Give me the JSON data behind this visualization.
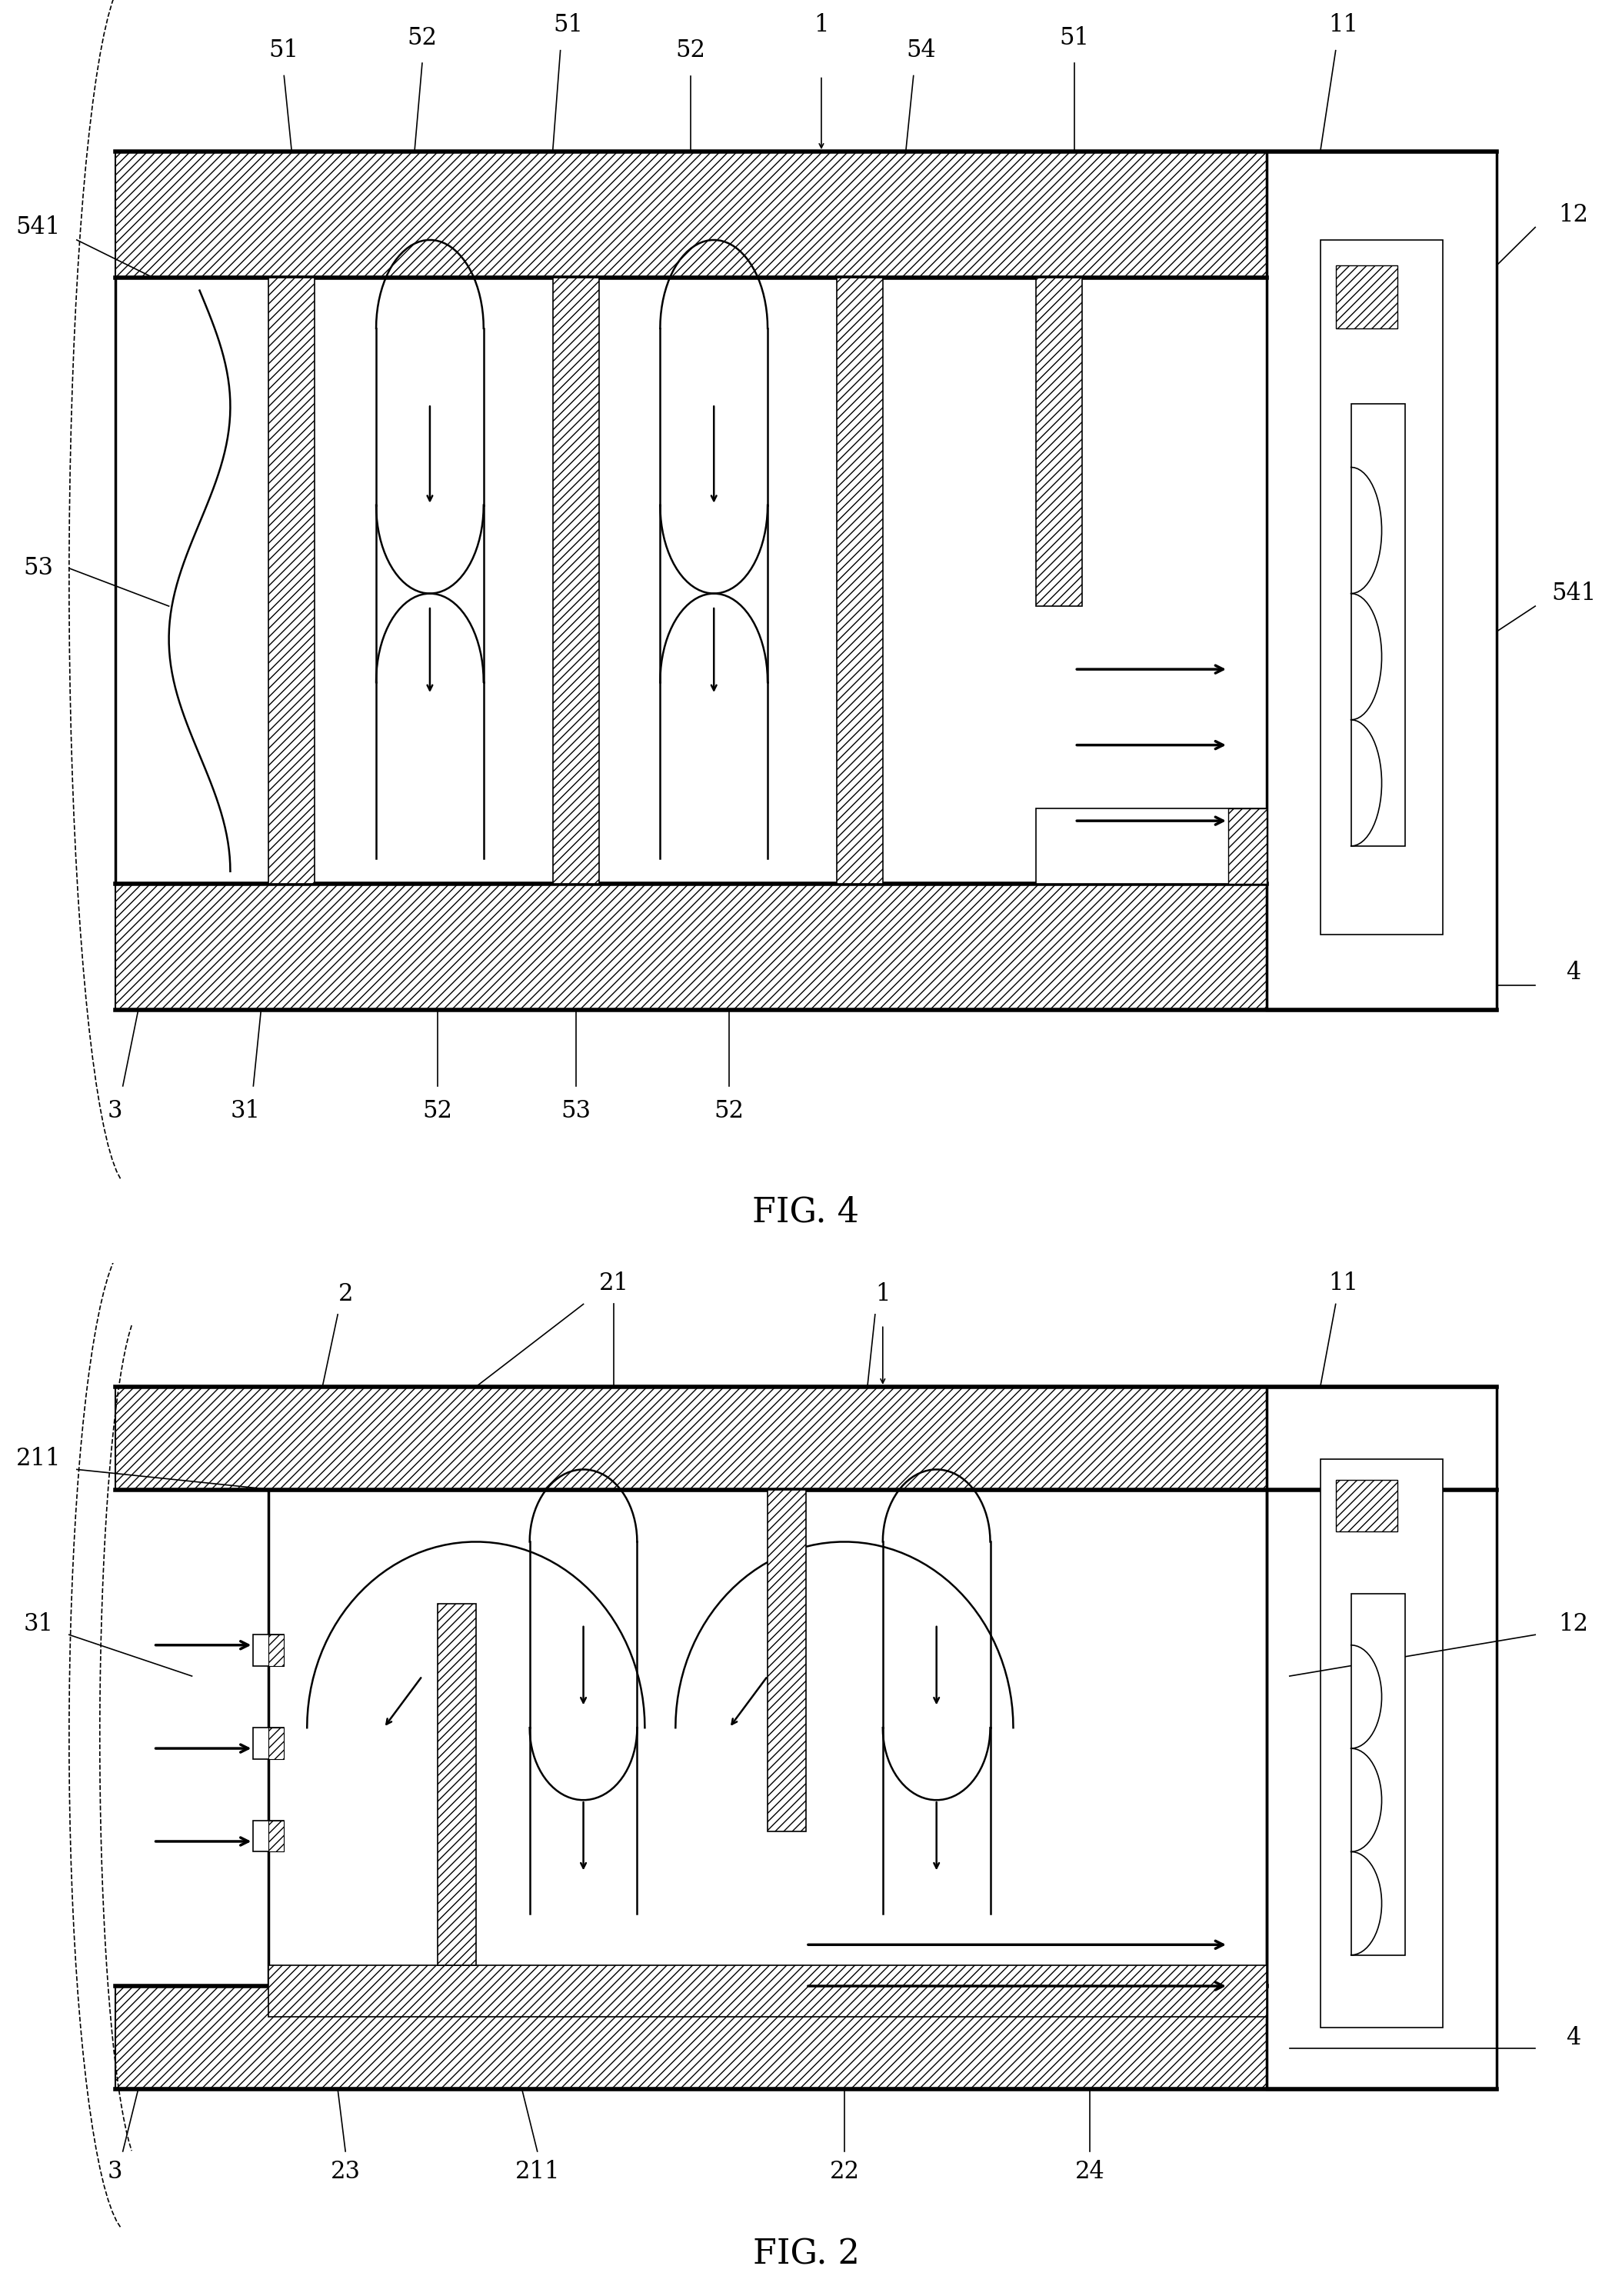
{
  "fig_width": 20.96,
  "fig_height": 29.85,
  "bg_color": "#ffffff",
  "fig4_title": "FIG. 4",
  "fig2_title": "FIG. 2",
  "title_fontsize": 32,
  "label_fontsize": 22
}
